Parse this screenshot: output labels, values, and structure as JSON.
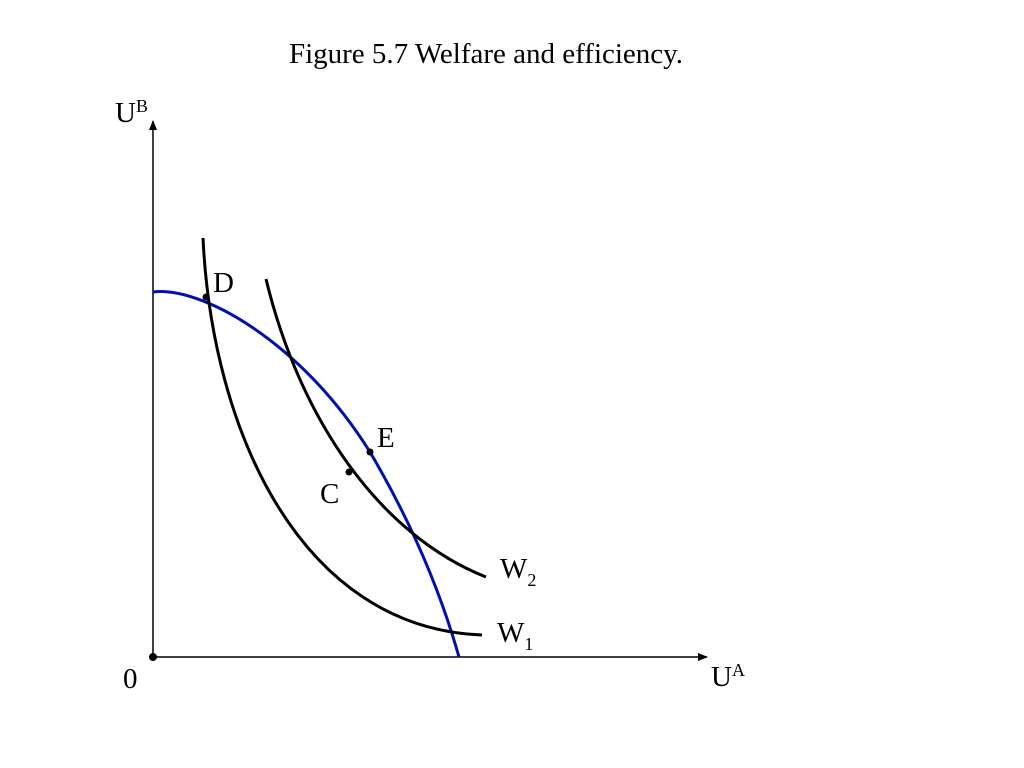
{
  "title": "Figure 5.7  Welfare and efficiency.",
  "axes": {
    "y": {
      "base": "U",
      "sup": "B"
    },
    "x": {
      "base": "U",
      "sup": "A"
    },
    "origin": "0"
  },
  "points": [
    {
      "label": "D"
    },
    {
      "label": "E"
    },
    {
      "label": "C"
    }
  ],
  "curves": [
    {
      "base": "W",
      "sub": "2"
    },
    {
      "base": "W",
      "sub": "1"
    }
  ]
}
